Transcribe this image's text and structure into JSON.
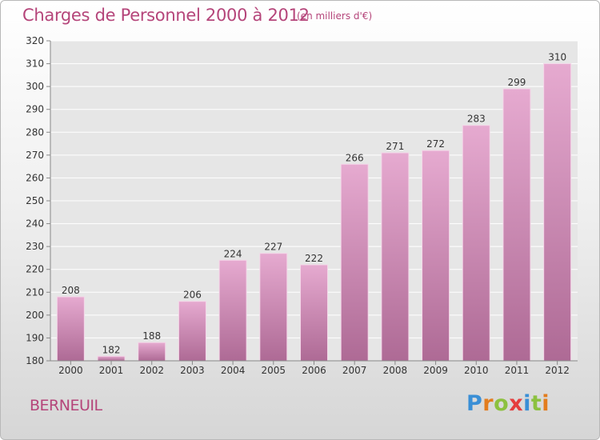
{
  "header": {
    "title": "Charges de Personnel 2000 à 2012",
    "unit_note": "(en milliers d'€)"
  },
  "footer": {
    "commune": "BERNEUIL",
    "logo_letters": [
      "P",
      "r",
      "o",
      "x",
      "i",
      "t",
      "i"
    ],
    "logo_colors": [
      "#3a8fd6",
      "#e37d1e",
      "#8cc13f",
      "#e53e3e",
      "#3a8fd6",
      "#8cc13f",
      "#e37d1e"
    ]
  },
  "colors": {
    "accent": "#b5457a",
    "bar_top": "#e6aad0",
    "bar_bottom": "#ae6a95"
  },
  "chart_data": {
    "type": "bar",
    "categories": [
      "2000",
      "2001",
      "2002",
      "2003",
      "2004",
      "2005",
      "2006",
      "2007",
      "2008",
      "2009",
      "2010",
      "2011",
      "2012"
    ],
    "values": [
      208,
      182,
      188,
      206,
      224,
      227,
      222,
      266,
      271,
      272,
      283,
      299,
      310
    ],
    "ylim": [
      180,
      320
    ],
    "yticks": [
      180,
      190,
      200,
      210,
      220,
      230,
      240,
      250,
      260,
      270,
      280,
      290,
      300,
      310,
      320
    ],
    "grid": true,
    "data_labels": true
  }
}
